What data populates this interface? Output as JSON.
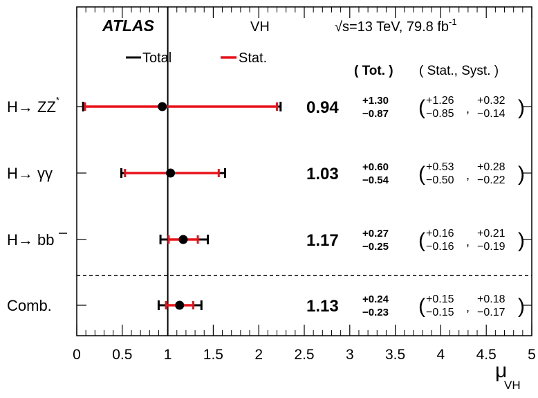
{
  "header": {
    "experiment": "ATLAS",
    "channel": "VH",
    "sqrt_prefix": "√s=13 TeV, 79.8 fb",
    "lumi_exp": "-1"
  },
  "legend": {
    "total": "Total",
    "stat": "Stat.",
    "col_tot": "( Tot. )",
    "col_statsyst": "( Stat., Syst. )",
    "colors": {
      "total": "#000000",
      "stat": "#e8121b"
    }
  },
  "xaxis": {
    "label_main": "μ",
    "label_sub": "VH",
    "ticks": [
      "0",
      "0.5",
      "1",
      "1.5",
      "2",
      "2.5",
      "3",
      "3.5",
      "4",
      "4.5",
      "5"
    ]
  },
  "rows": [
    {
      "label": "H→ ZZ",
      "label_sup": "*",
      "value": "0.94",
      "tot_up": "+1.30",
      "tot_dn": "−0.87",
      "stat_up": "+1.26",
      "stat_dn": "−0.85",
      "syst_up": "+0.32",
      "syst_dn": "−0.14"
    },
    {
      "label": "H→ γγ",
      "label_sup": "",
      "value": "1.03",
      "tot_up": "+0.60",
      "tot_dn": "−0.54",
      "stat_up": "+0.53",
      "stat_dn": "−0.50",
      "syst_up": "+0.28",
      "syst_dn": "−0.22"
    },
    {
      "label": "H→ bb",
      "label_sup": "",
      "value": "1.17",
      "tot_up": "+0.27",
      "tot_dn": "−0.25",
      "stat_up": "+0.16",
      "stat_dn": "−0.16",
      "syst_up": "+0.21",
      "syst_dn": "−0.19"
    },
    {
      "label": "Comb.",
      "label_sup": "",
      "value": "1.13",
      "tot_up": "+0.24",
      "tot_dn": "−0.23",
      "stat_up": "+0.15",
      "stat_dn": "−0.15",
      "syst_up": "+0.18",
      "syst_dn": "−0.17"
    }
  ],
  "chart_data": {
    "type": "scatter",
    "title": "",
    "xlabel": "μVH",
    "xlim": [
      0,
      5
    ],
    "sm_reference": 1,
    "categories": [
      "H→ ZZ*",
      "H→ γγ",
      "H→ bb",
      "Comb."
    ],
    "series": [
      {
        "name": "Total",
        "values": [
          0.94,
          1.03,
          1.17,
          1.13
        ],
        "err_up": [
          1.3,
          0.6,
          0.27,
          0.24
        ],
        "err_dn": [
          0.87,
          0.54,
          0.25,
          0.23
        ]
      },
      {
        "name": "Stat.",
        "values": [
          0.94,
          1.03,
          1.17,
          1.13
        ],
        "err_up": [
          1.26,
          0.53,
          0.16,
          0.15
        ],
        "err_dn": [
          0.85,
          0.5,
          0.16,
          0.15
        ]
      }
    ],
    "syst_up": [
      0.32,
      0.28,
      0.21,
      0.18
    ],
    "syst_dn": [
      0.14,
      0.22,
      0.19,
      0.17
    ]
  }
}
